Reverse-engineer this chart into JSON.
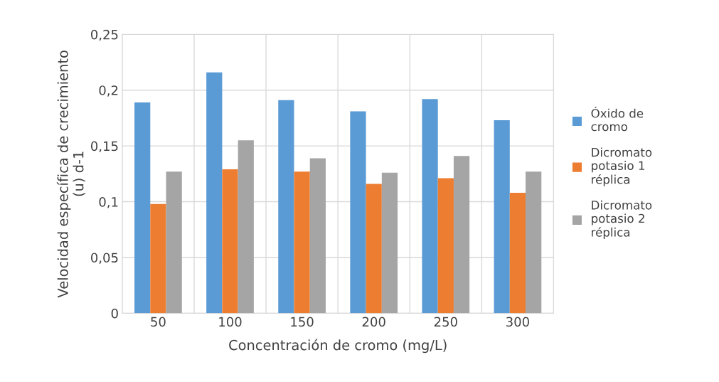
{
  "chart_data": {
    "type": "bar",
    "categories": [
      "50",
      "100",
      "150",
      "200",
      "250",
      "300"
    ],
    "xlabel": "Concentración de cromo (mg/L)",
    "ylabel": "Velocidad específica de crecimiento (u) d-1",
    "series": [
      {
        "name": "Óxido de cromo",
        "color": "#5b9bd5",
        "values": [
          0.189,
          0.216,
          0.191,
          0.181,
          0.192,
          0.173
        ]
      },
      {
        "name": "Dicromato potasio 1 réplica",
        "color": "#ed7d31",
        "values": [
          0.098,
          0.129,
          0.127,
          0.116,
          0.121,
          0.108
        ]
      },
      {
        "name": "Dicromato potasio 2 réplica",
        "color": "#a5a5a5",
        "values": [
          0.127,
          0.155,
          0.139,
          0.126,
          0.141,
          0.127
        ]
      }
    ],
    "ylim": [
      0,
      0.25
    ],
    "yticks": [
      {
        "value": 0,
        "label": "0"
      },
      {
        "value": 0.05,
        "label": "0,05"
      },
      {
        "value": 0.1,
        "label": "0,1"
      },
      {
        "value": 0.15,
        "label": "0,15"
      },
      {
        "value": 0.2,
        "label": "0,2"
      },
      {
        "value": 0.25,
        "label": "0,25"
      }
    ],
    "grid": true,
    "legend": "right"
  }
}
